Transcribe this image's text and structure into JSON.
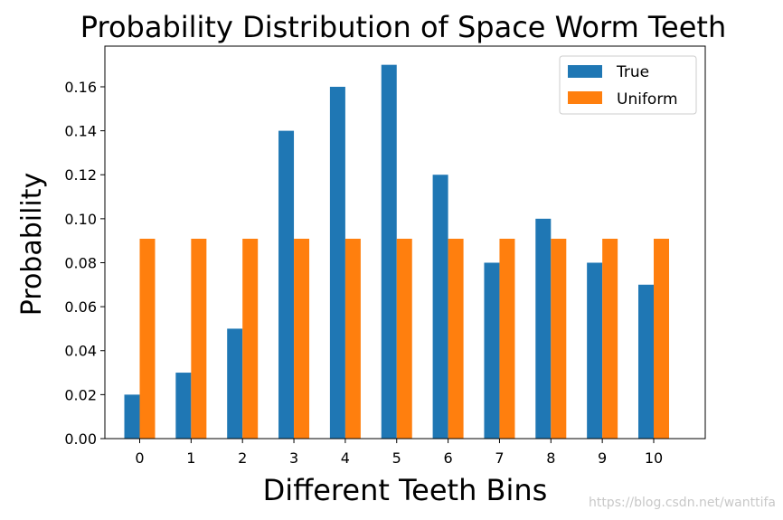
{
  "chart_data": {
    "type": "bar",
    "title": "Probability Distribution of Space Worm Teeth",
    "xlabel": "Different Teeth Bins",
    "ylabel": "Probability",
    "categories": [
      "0",
      "1",
      "2",
      "3",
      "4",
      "5",
      "6",
      "7",
      "8",
      "9",
      "10"
    ],
    "series": [
      {
        "name": "True",
        "color": "#1f77b4",
        "values": [
          0.02,
          0.03,
          0.05,
          0.14,
          0.16,
          0.17,
          0.12,
          0.08,
          0.1,
          0.08,
          0.07
        ]
      },
      {
        "name": "Uniform",
        "color": "#ff7f0e",
        "values": [
          0.0909,
          0.0909,
          0.0909,
          0.0909,
          0.0909,
          0.0909,
          0.0909,
          0.0909,
          0.0909,
          0.0909,
          0.0909
        ]
      }
    ],
    "ylim": [
      0,
      0.1785
    ],
    "yticks": [
      "0.00",
      "0.02",
      "0.04",
      "0.06",
      "0.08",
      "0.10",
      "0.12",
      "0.14",
      "0.16"
    ],
    "legend_position": "top-right",
    "grid": false
  },
  "watermark": "https://blog.csdn.net/wanttifa"
}
